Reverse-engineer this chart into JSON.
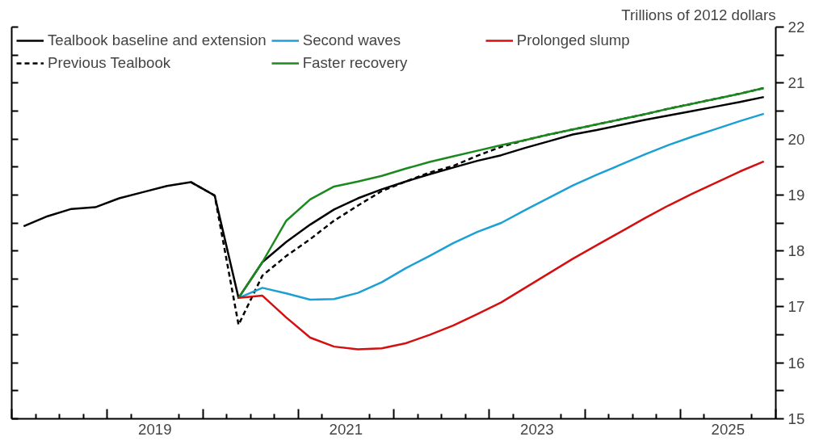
{
  "chart_data": {
    "type": "line",
    "ylabel": "Trillions of 2012 dollars",
    "xlim": [
      2018,
      2026
    ],
    "ylim": [
      15,
      22
    ],
    "xticks": [
      {
        "value": 2018,
        "label": null
      },
      {
        "value": 2018.25,
        "label": null
      },
      {
        "value": 2018.5,
        "label": null
      },
      {
        "value": 2018.75,
        "label": null
      },
      {
        "value": 2019,
        "label": null
      },
      {
        "value": 2019.25,
        "label": null
      },
      {
        "value": 2019.5,
        "label": "2019"
      },
      {
        "value": 2019.75,
        "label": null
      },
      {
        "value": 2020,
        "label": null
      },
      {
        "value": 2020.25,
        "label": null
      },
      {
        "value": 2020.5,
        "label": null
      },
      {
        "value": 2020.75,
        "label": null
      },
      {
        "value": 2021,
        "label": null
      },
      {
        "value": 2021.25,
        "label": null
      },
      {
        "value": 2021.5,
        "label": "2021"
      },
      {
        "value": 2021.75,
        "label": null
      },
      {
        "value": 2022,
        "label": null
      },
      {
        "value": 2022.25,
        "label": null
      },
      {
        "value": 2022.5,
        "label": null
      },
      {
        "value": 2022.75,
        "label": null
      },
      {
        "value": 2023,
        "label": null
      },
      {
        "value": 2023.25,
        "label": null
      },
      {
        "value": 2023.5,
        "label": "2023"
      },
      {
        "value": 2023.75,
        "label": null
      },
      {
        "value": 2024,
        "label": null
      },
      {
        "value": 2024.25,
        "label": null
      },
      {
        "value": 2024.5,
        "label": null
      },
      {
        "value": 2024.75,
        "label": null
      },
      {
        "value": 2025,
        "label": null
      },
      {
        "value": 2025.25,
        "label": null
      },
      {
        "value": 2025.5,
        "label": "2025"
      },
      {
        "value": 2025.75,
        "label": null
      },
      {
        "value": 2026,
        "label": null
      }
    ],
    "yticks": [
      15,
      {
        "value": 15.5,
        "label": null
      },
      16,
      {
        "value": 16.5,
        "label": null
      },
      17,
      {
        "value": 17.5,
        "label": null
      },
      18,
      {
        "value": 18.5,
        "label": null
      },
      19,
      {
        "value": 19.5,
        "label": null
      },
      20,
      {
        "value": 20.5,
        "label": null
      },
      21,
      {
        "value": 21.5,
        "label": null
      },
      22
    ],
    "grid": false,
    "legend": "top left",
    "marker": "none",
    "series": [
      {
        "name": "Tealbook baseline and extension",
        "color": "#000000",
        "line_style": "solid",
        "x": [
          2018.125,
          2018.375,
          2018.625,
          2018.875,
          2019.125,
          2019.375,
          2019.625,
          2019.875,
          2020.125,
          2020.375,
          2020.625,
          2020.875,
          2021.125,
          2021.375,
          2021.625,
          2021.875,
          2022.125,
          2022.375,
          2022.625,
          2022.875,
          2023.125,
          2023.375,
          2023.625,
          2023.875,
          2024.125,
          2024.375,
          2024.625,
          2024.875,
          2025.125,
          2025.375,
          2025.625,
          2025.875
        ],
        "values": [
          18.44,
          18.62,
          18.75,
          18.78,
          18.94,
          19.05,
          19.16,
          19.23,
          18.99,
          17.16,
          17.8,
          18.16,
          18.47,
          18.74,
          18.94,
          19.1,
          19.24,
          19.37,
          19.49,
          19.61,
          19.71,
          19.84,
          19.96,
          20.08,
          20.16,
          20.25,
          20.34,
          20.42,
          20.5,
          20.58,
          20.66,
          20.75
        ]
      },
      {
        "name": "Previous Tealbook",
        "color": "#000000",
        "line_style": "dashed",
        "x": [
          2019.875,
          2020.125,
          2020.375,
          2020.625,
          2020.875,
          2021.125,
          2021.375,
          2021.625,
          2021.875,
          2022.125,
          2022.375,
          2022.625,
          2022.875,
          2023.125,
          2023.375,
          2023.625,
          2023.875,
          2024.125,
          2024.375,
          2024.625,
          2024.875,
          2025.125,
          2025.375,
          2025.625,
          2025.875
        ],
        "values": [
          19.23,
          18.99,
          16.68,
          17.56,
          17.91,
          18.21,
          18.54,
          18.81,
          19.07,
          19.24,
          19.4,
          19.52,
          19.7,
          19.86,
          19.98,
          20.08,
          20.17,
          20.26,
          20.35,
          20.44,
          20.54,
          20.63,
          20.72,
          20.81,
          20.91
        ]
      },
      {
        "name": "Second waves",
        "color": "#1ca0d4",
        "line_style": "solid",
        "x": [
          2020.375,
          2020.625,
          2020.875,
          2021.125,
          2021.375,
          2021.625,
          2021.875,
          2022.125,
          2022.375,
          2022.625,
          2022.875,
          2023.125,
          2023.375,
          2023.625,
          2023.875,
          2024.125,
          2024.375,
          2024.625,
          2024.875,
          2025.125,
          2025.375,
          2025.625,
          2025.875
        ],
        "values": [
          17.16,
          17.34,
          17.24,
          17.13,
          17.14,
          17.25,
          17.44,
          17.69,
          17.91,
          18.14,
          18.34,
          18.5,
          18.73,
          18.95,
          19.17,
          19.36,
          19.54,
          19.72,
          19.89,
          20.04,
          20.18,
          20.32,
          20.45
        ]
      },
      {
        "name": "Faster recovery",
        "color": "#1a8a1e",
        "line_style": "solid",
        "x": [
          2020.375,
          2020.625,
          2020.875,
          2021.125,
          2021.375,
          2021.625,
          2021.875,
          2022.125,
          2022.375,
          2022.625,
          2022.875,
          2023.125,
          2023.375,
          2023.625,
          2023.875,
          2024.125,
          2024.375,
          2024.625,
          2024.875,
          2025.125,
          2025.375,
          2025.625,
          2025.875
        ],
        "values": [
          17.16,
          17.8,
          18.54,
          18.92,
          19.15,
          19.24,
          19.34,
          19.47,
          19.59,
          19.69,
          19.79,
          19.89,
          19.98,
          20.08,
          20.17,
          20.26,
          20.35,
          20.44,
          20.54,
          20.63,
          20.72,
          20.81,
          20.91
        ]
      },
      {
        "name": "Prolonged slump",
        "color": "#d40f0f",
        "line_style": "solid",
        "x": [
          2020.375,
          2020.625,
          2020.875,
          2021.125,
          2021.375,
          2021.625,
          2021.875,
          2022.125,
          2022.375,
          2022.625,
          2022.875,
          2023.125,
          2023.375,
          2023.625,
          2023.875,
          2024.125,
          2024.375,
          2024.625,
          2024.875,
          2025.125,
          2025.375,
          2025.625,
          2025.875
        ],
        "values": [
          17.16,
          17.2,
          16.81,
          16.45,
          16.29,
          16.24,
          16.26,
          16.35,
          16.5,
          16.67,
          16.87,
          17.08,
          17.34,
          17.6,
          17.86,
          18.1,
          18.34,
          18.58,
          18.81,
          19.02,
          19.22,
          19.42,
          19.6
        ]
      }
    ]
  }
}
